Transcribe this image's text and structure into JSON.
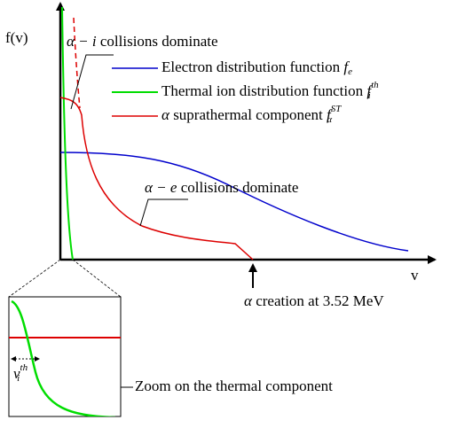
{
  "axes": {
    "y_label": "f(v)",
    "x_label": "v"
  },
  "annotations": {
    "ion_collisions": {
      "symbol": "α − i",
      "text": "collisions dominate"
    },
    "electron_collisions": {
      "symbol": "α − e",
      "text": "collisions dominate"
    },
    "creation": {
      "symbol": "α",
      "text": "creation at 3.52 MeV"
    },
    "zoom": "Zoom on the thermal component",
    "thermal_velocity": {
      "symbol": "v",
      "sub": "i",
      "sup": "th"
    }
  },
  "legend": [
    {
      "text": "Electron distribution function",
      "symbol": "f",
      "sub": "e",
      "color": "#0000cc"
    },
    {
      "text": "Thermal ion distribution function",
      "symbol": "f",
      "sub": "i",
      "sup": "th",
      "color": "#00dd00"
    },
    {
      "prefix": "α",
      "text": "suprathermal component",
      "symbol": "f",
      "sub": "α",
      "sup": "ST",
      "color": "#dd0000"
    }
  ]
}
